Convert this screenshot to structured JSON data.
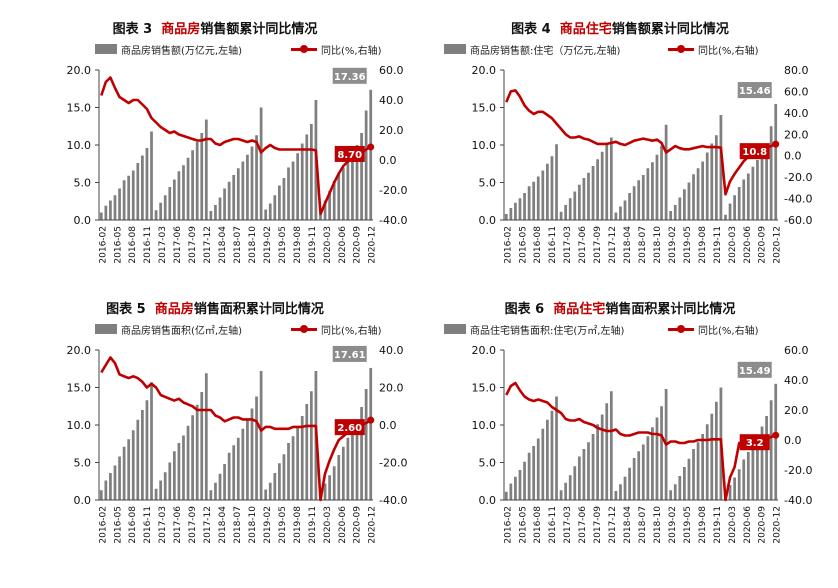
{
  "colors": {
    "bar": "#7f7f7f",
    "line": "#c00000",
    "bar_label_bg": "#8c8c8c",
    "line_label_bg": "#c00000"
  },
  "x_ticks": [
    "2016-02",
    "2016-05",
    "2016-08",
    "2016-11",
    "2017-03",
    "2017-06",
    "2017-09",
    "2017-12",
    "2018-04",
    "2018-07",
    "2018-10",
    "2019-02",
    "2019-05",
    "2019-08",
    "2019-11",
    "2020-03",
    "2020-06",
    "2020-09",
    "2020-12"
  ],
  "chart_data": [
    {
      "type": "bar+line",
      "title_prefix": "图表 3",
      "title_red": "商品房",
      "title_rest": "销售额累计同比情况",
      "legend": {
        "bars": "商品房销售额(万亿元,左轴)",
        "line": "同比(%,右轴)"
      },
      "y_left": {
        "min": 0,
        "max": 20,
        "ticks": [
          "0.0",
          "5.0",
          "10.0",
          "15.0",
          "20.0"
        ]
      },
      "y_right": {
        "min": -40,
        "max": 60,
        "ticks": [
          "-40.0",
          "-20.0",
          "0.0",
          "20.0",
          "40.0",
          "60.0"
        ]
      },
      "bar_label": "17.36",
      "line_label": "8.70",
      "bars": [
        1.0,
        1.9,
        2.6,
        3.3,
        4.2,
        5.3,
        5.9,
        6.6,
        7.6,
        8.6,
        9.6,
        11.8,
        1.3,
        2.3,
        3.3,
        4.4,
        5.4,
        6.5,
        7.3,
        8.3,
        9.3,
        10.4,
        11.6,
        13.4,
        1.2,
        2.0,
        3.0,
        4.2,
        5.1,
        6.0,
        6.9,
        7.8,
        8.7,
        9.8,
        11.3,
        15.0,
        1.4,
        2.2,
        3.3,
        4.6,
        5.6,
        7.0,
        7.8,
        8.9,
        10.2,
        11.4,
        12.8,
        16.0,
        0.8,
        2.6,
        3.9,
        5.2,
        6.3,
        7.0,
        8.0,
        8.8,
        10.0,
        11.6,
        14.6,
        17.36
      ],
      "line": [
        43,
        52,
        55,
        48,
        42,
        40,
        38,
        40,
        40,
        37,
        34,
        28,
        25,
        22,
        20,
        18,
        19,
        17,
        16,
        15,
        14,
        13,
        13,
        14,
        14,
        11,
        10,
        12,
        13,
        14,
        14,
        13,
        12,
        13,
        12,
        5,
        8,
        10,
        8,
        7,
        7,
        7,
        7,
        7,
        7,
        7,
        7,
        6.5,
        -36,
        -29,
        -22,
        -15,
        -9,
        -4,
        -1,
        1,
        4,
        5,
        7,
        8.7
      ]
    },
    {
      "type": "bar+line",
      "title_prefix": "图表 4",
      "title_red": "商品住宅",
      "title_rest": "销售额累计同比情况",
      "legend": {
        "bars": "商品房销售额:住宅（万亿元,左轴)",
        "line": "同比(%,右轴)"
      },
      "y_left": {
        "min": 0,
        "max": 20,
        "ticks": [
          "0.0",
          "5.0",
          "10.0",
          "15.0",
          "20.0"
        ]
      },
      "y_right": {
        "min": -60,
        "max": 80,
        "ticks": [
          "-60.0",
          "-40.0",
          "-20.0",
          "0.0",
          "20.0",
          "40.0",
          "60.0",
          "80.0"
        ]
      },
      "bar_label": "15.46",
      "line_label": "10.8",
      "bars": [
        0.8,
        1.6,
        2.3,
        2.9,
        3.6,
        4.5,
        5.1,
        5.8,
        6.6,
        7.5,
        8.5,
        10.1,
        1.1,
        2.0,
        2.9,
        3.8,
        4.7,
        5.6,
        6.3,
        7.2,
        8.1,
        9.1,
        10.2,
        11.0,
        1.0,
        1.8,
        2.6,
        3.6,
        4.5,
        5.3,
        6.0,
        6.9,
        7.7,
        8.7,
        9.9,
        12.7,
        1.2,
        2.0,
        3.0,
        4.1,
        5.0,
        6.1,
        6.9,
        7.8,
        9.0,
        10.2,
        11.3,
        14.0,
        0.7,
        2.2,
        3.3,
        4.4,
        5.4,
        6.2,
        7.1,
        8.0,
        9.1,
        10.2,
        12.5,
        15.46
      ],
      "line": [
        50,
        60,
        61,
        55,
        47,
        42,
        39,
        41,
        41,
        38,
        35,
        30,
        25,
        20,
        17,
        17,
        18,
        16,
        15,
        13,
        11,
        11,
        11,
        12,
        13,
        11,
        10,
        12,
        14,
        15,
        16,
        15,
        14,
        15,
        12,
        3,
        6,
        9,
        7,
        6,
        6,
        7,
        8,
        9,
        8,
        8,
        8,
        7.5,
        -36,
        -24,
        -17,
        -11,
        -5,
        -1,
        2,
        4,
        6,
        8,
        9,
        10.8
      ]
    },
    {
      "type": "bar+line",
      "title_prefix": "图表 5",
      "title_red": "商品房",
      "title_rest": "销售面积累计同比情况",
      "legend": {
        "bars": "商品房销售面积(亿㎡,左轴)",
        "line": "同比(%,右轴)"
      },
      "y_left": {
        "min": 0,
        "max": 20,
        "ticks": [
          "0.0",
          "5.0",
          "10.0",
          "15.0",
          "20.0"
        ]
      },
      "y_right": {
        "min": -40,
        "max": 40,
        "ticks": [
          "-40.0",
          "-20.0",
          "0.0",
          "20.0",
          "40.0"
        ]
      },
      "bar_label": "17.61",
      "line_label": "2.60",
      "bars": [
        1.3,
        2.6,
        3.6,
        4.6,
        5.8,
        7.1,
        8.1,
        9.3,
        10.7,
        12.0,
        13.3,
        15.7,
        1.5,
        2.6,
        3.7,
        5.0,
        6.5,
        7.6,
        8.6,
        9.9,
        11.3,
        12.7,
        14.4,
        16.9,
        1.3,
        2.3,
        3.5,
        4.8,
        6.3,
        7.3,
        8.3,
        9.5,
        10.8,
        12.2,
        13.8,
        17.2,
        1.4,
        2.3,
        3.6,
        4.9,
        6.1,
        7.6,
        8.5,
        9.7,
        11.2,
        12.8,
        14.5,
        17.2,
        0.8,
        2.2,
        3.3,
        4.5,
        6.0,
        7.1,
        8.3,
        9.3,
        10.7,
        12.4,
        14.8,
        17.61
      ],
      "line": [
        28,
        32,
        36,
        33,
        27,
        26,
        25,
        26,
        25,
        23,
        20,
        22,
        20,
        16,
        15,
        14,
        13,
        14,
        12,
        11,
        10,
        8,
        8,
        8,
        8,
        5,
        4,
        2,
        3,
        4,
        4,
        3,
        3,
        3,
        2,
        -3,
        -1,
        -1,
        -2,
        -2,
        -2,
        -2,
        -1,
        -1,
        -1,
        -0.5,
        -0.5,
        -0.5,
        -40,
        -26,
        -19,
        -13,
        -8,
        -6,
        -4,
        -2,
        -1,
        0,
        1,
        2.6
      ]
    },
    {
      "type": "bar+line",
      "title_prefix": "图表 6",
      "title_red": "商品住宅",
      "title_rest": "销售面积累计同比情况",
      "legend": {
        "bars": "商品住宅销售面积:住宅(万㎡,左轴)",
        "line": "同比(%,右轴)"
      },
      "y_left": {
        "min": 0,
        "max": 20,
        "ticks": [
          "0.0",
          "5.0",
          "10.0",
          "15.0",
          "20.0"
        ]
      },
      "y_right": {
        "min": -40,
        "max": 60,
        "ticks": [
          "-40.0",
          "-20.0",
          "0.0",
          "20.0",
          "40.0",
          "60.0"
        ]
      },
      "bar_label": "15.49",
      "line_label": "3.2",
      "bars": [
        1.1,
        2.2,
        3.1,
        4.0,
        5.1,
        6.3,
        7.2,
        8.2,
        9.5,
        10.7,
        11.9,
        13.8,
        1.3,
        2.3,
        3.3,
        4.5,
        5.8,
        6.8,
        7.7,
        8.8,
        10.1,
        11.4,
        12.9,
        14.5,
        1.2,
        2.1,
        3.1,
        4.3,
        5.6,
        6.5,
        7.4,
        8.5,
        9.7,
        11.0,
        12.5,
        14.8,
        1.3,
        2.1,
        3.2,
        4.4,
        5.5,
        6.8,
        7.7,
        8.8,
        10.1,
        11.5,
        13.1,
        15.0,
        0.7,
        2.0,
        3.0,
        4.1,
        5.4,
        6.4,
        7.5,
        8.5,
        9.8,
        11.2,
        13.3,
        15.49
      ],
      "line": [
        30,
        36,
        38,
        33,
        29,
        27,
        26,
        27,
        26,
        25,
        22,
        20,
        18,
        14,
        13,
        13,
        14,
        12,
        11,
        10,
        8,
        7,
        6,
        6,
        7,
        4,
        3,
        3,
        4,
        5,
        5,
        5,
        4,
        4,
        3,
        -3,
        -1,
        -1,
        -2,
        -2,
        -1,
        -1,
        0,
        0,
        0,
        0.5,
        0.5,
        0.5,
        -40,
        -25,
        -18,
        -2,
        -6,
        -5,
        -3,
        -1,
        0,
        1,
        2,
        3.2
      ]
    }
  ]
}
